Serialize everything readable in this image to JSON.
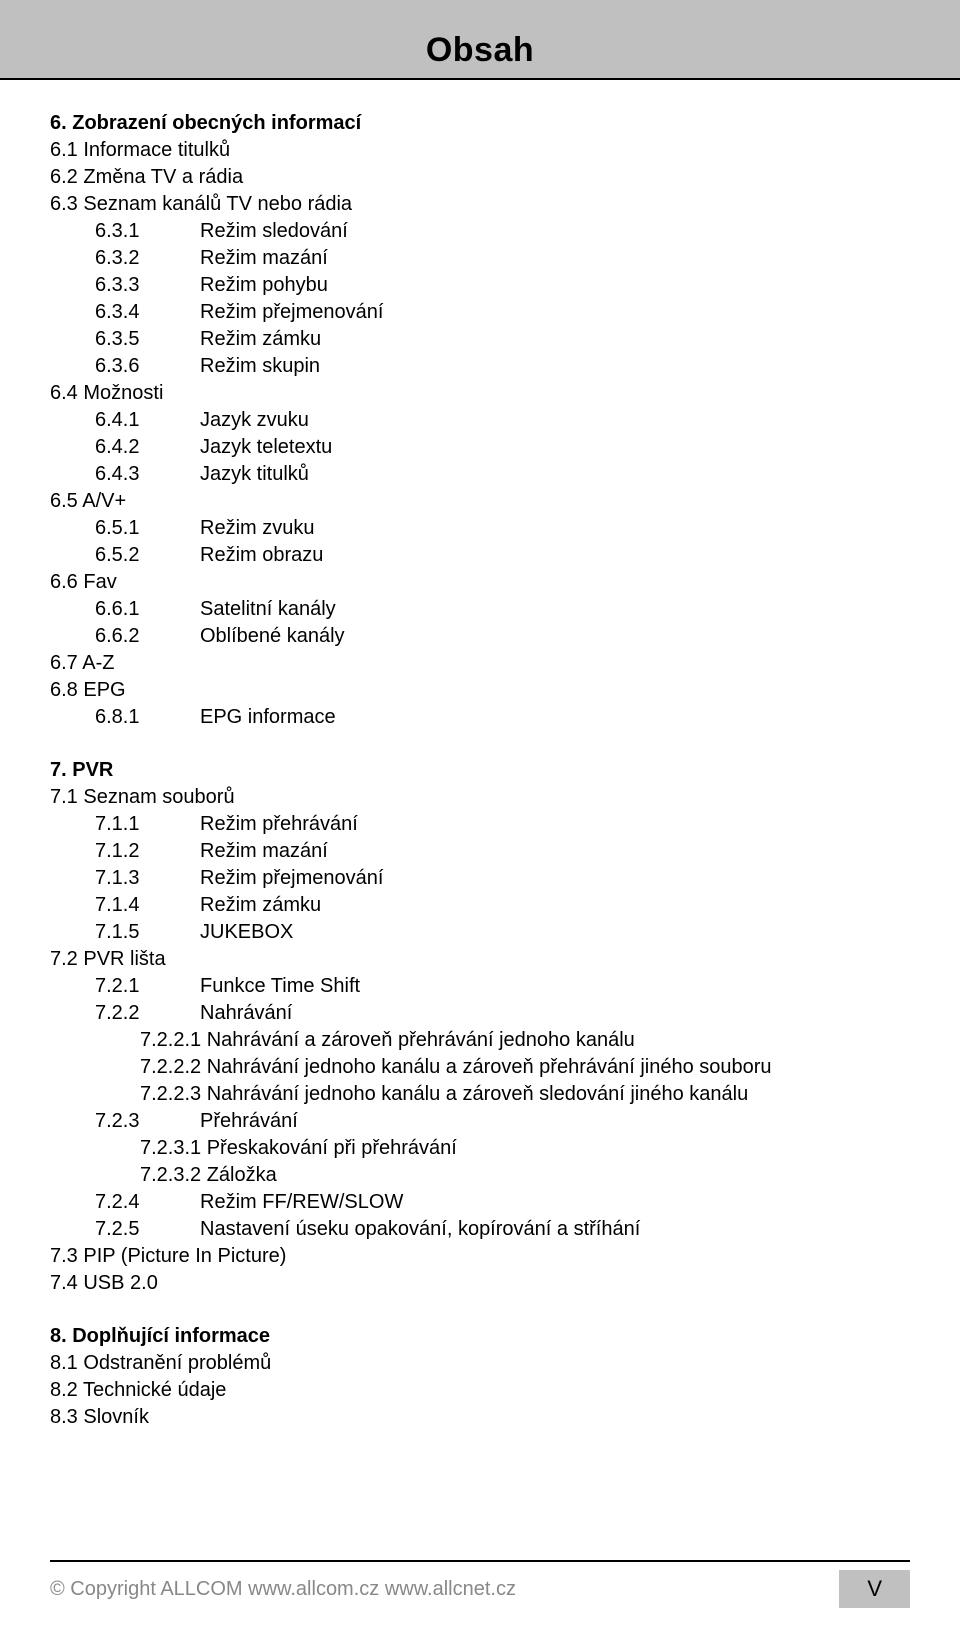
{
  "title": "Obsah",
  "toc": [
    {
      "n": "6.",
      "t": "Zobrazení obecných informací",
      "lvl": 0,
      "bold": true
    },
    {
      "n": "6.1",
      "t": "Informace titulků",
      "lvl": 0
    },
    {
      "n": "6.2",
      "t": "Změna TV a rádia",
      "lvl": 0
    },
    {
      "n": "6.3",
      "t": "Seznam kanálů TV nebo rádia",
      "lvl": 0
    },
    {
      "n": "6.3.1",
      "t": "Režim sledování",
      "lvl": 2
    },
    {
      "n": "6.3.2",
      "t": "Režim mazání",
      "lvl": 2
    },
    {
      "n": "6.3.3",
      "t": "Režim pohybu",
      "lvl": 2
    },
    {
      "n": "6.3.4",
      "t": "Režim přejmenování",
      "lvl": 2
    },
    {
      "n": "6.3.5",
      "t": "Režim zámku",
      "lvl": 2
    },
    {
      "n": "6.3.6",
      "t": "Režim skupin",
      "lvl": 2
    },
    {
      "n": "6.4",
      "t": "Možnosti",
      "lvl": 0
    },
    {
      "n": "6.4.1",
      "t": "Jazyk  zvuku",
      "lvl": 2
    },
    {
      "n": "6.4.2",
      "t": "Jazyk teletextu",
      "lvl": 2
    },
    {
      "n": "6.4.3",
      "t": "Jazyk titulků",
      "lvl": 2
    },
    {
      "n": "6.5",
      "t": "A/V+",
      "lvl": 0
    },
    {
      "n": "6.5.1",
      "t": "Režim zvuku",
      "lvl": 2
    },
    {
      "n": "6.5.2",
      "t": "Režim obrazu",
      "lvl": 2
    },
    {
      "n": "6.6",
      "t": "Fav",
      "lvl": 0
    },
    {
      "n": "6.6.1",
      "t": "Satelitní kanály",
      "lvl": 2
    },
    {
      "n": "6.6.2",
      "t": "Oblíbené kanály",
      "lvl": 2
    },
    {
      "n": "6.7",
      "t": "A-Z",
      "lvl": 0
    },
    {
      "n": "6.8",
      "t": "EPG",
      "lvl": 0
    },
    {
      "n": "6.8.1",
      "t": "EPG informace",
      "lvl": 2
    },
    {
      "gap": true
    },
    {
      "n": "7.",
      "t": "PVR",
      "lvl": 0,
      "bold": true
    },
    {
      "n": "7.1",
      "t": "Seznam souborů",
      "lvl": 0
    },
    {
      "n": "7.1.1",
      "t": "Režim přehrávání",
      "lvl": 2
    },
    {
      "n": "7.1.2",
      "t": "Režim mazání",
      "lvl": 2
    },
    {
      "n": "7.1.3",
      "t": "Režim přejmenování",
      "lvl": 2
    },
    {
      "n": "7.1.4",
      "t": "Režim zámku",
      "lvl": 2
    },
    {
      "n": "7.1.5",
      "t": "JUKEBOX",
      "lvl": 2
    },
    {
      "n": "7.2",
      "t": "PVR lišta",
      "lvl": 0
    },
    {
      "n": "7.2.1",
      "t": "Funkce Time Shift",
      "lvl": 2
    },
    {
      "n": "7.2.2",
      "t": "Nahrávání",
      "lvl": 2
    },
    {
      "n": "7.2.2.1",
      "t": "Nahrávání a zároveň přehrávání jednoho kanálu",
      "lvl": 3,
      "inline": true
    },
    {
      "n": "7.2.2.2",
      "t": "Nahrávání jednoho kanálu a zároveň přehrávání jiného souboru",
      "lvl": 3,
      "inline": true
    },
    {
      "n": "7.2.2.3",
      "t": "Nahrávání jednoho kanálu a zároveň sledování jiného kanálu",
      "lvl": 3,
      "inline": true
    },
    {
      "n": "7.2.3",
      "t": "Přehrávání",
      "lvl": 2
    },
    {
      "n": "7.2.3.1",
      "t": "Přeskakování při přehrávání",
      "lvl": 3,
      "inline": true
    },
    {
      "n": "7.2.3.2",
      "t": "Záložka",
      "lvl": 3,
      "inline": true
    },
    {
      "n": "7.2.4",
      "t": "Režim FF/REW/SLOW",
      "lvl": 2
    },
    {
      "n": "7.2.5",
      "t": "Nastavení úseku opakování, kopírování a stříhání",
      "lvl": 2
    },
    {
      "n": "7.3",
      "t": "PIP (Picture In Picture)",
      "lvl": 0
    },
    {
      "n": "7.4",
      "t": "USB 2.0",
      "lvl": 0
    },
    {
      "gap": true
    },
    {
      "n": "8.",
      "t": "Doplňující informace",
      "lvl": 0,
      "bold": true
    },
    {
      "n": "8.1",
      "t": "Odstranění problémů",
      "lvl": 0
    },
    {
      "n": "8.2",
      "t": "Technické údaje",
      "lvl": 0
    },
    {
      "n": "8.3",
      "t": "Slovník",
      "lvl": 0
    }
  ],
  "footer": {
    "copyright": "© Copyright ALLCOM  www.allcom.cz  www.allcnet.cz",
    "page": "V"
  }
}
